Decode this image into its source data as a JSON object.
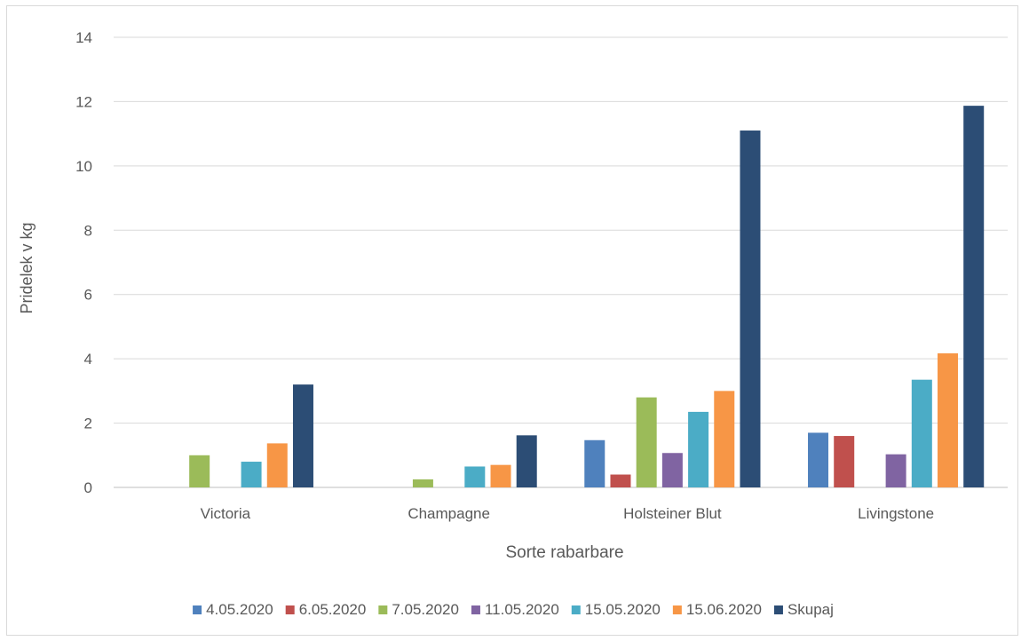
{
  "chart_data": {
    "type": "bar",
    "title": "",
    "xlabel": "Sorte rabarbare",
    "ylabel": "Pridelek v kg",
    "ylim": [
      0,
      14
    ],
    "yticks": [
      0,
      2,
      4,
      6,
      8,
      10,
      12,
      14
    ],
    "grid": true,
    "legend_position": "bottom",
    "categories": [
      "Victoria",
      "Champagne",
      "Holsteiner Blut",
      "Livingstone"
    ],
    "series": [
      {
        "name": "4.05.2020",
        "color": "#4f81bd",
        "values": [
          0,
          0,
          1.47,
          1.7
        ]
      },
      {
        "name": "6.05.2020",
        "color": "#c0504d",
        "values": [
          0,
          0,
          0.4,
          1.6
        ]
      },
      {
        "name": "7.05.2020",
        "color": "#9bbb59",
        "values": [
          1.0,
          0.25,
          2.8,
          0
        ]
      },
      {
        "name": "11.05.2020",
        "color": "#8064a2",
        "values": [
          0,
          0,
          1.07,
          1.03
        ]
      },
      {
        "name": "15.05.2020",
        "color": "#4bacc6",
        "values": [
          0.8,
          0.65,
          2.35,
          3.35
        ]
      },
      {
        "name": "15.06.2020",
        "color": "#f79646",
        "values": [
          1.37,
          0.7,
          3.0,
          4.17
        ]
      },
      {
        "name": "Skupaj",
        "color": "#2c4d75",
        "values": [
          3.2,
          1.62,
          11.1,
          11.87
        ]
      }
    ]
  }
}
